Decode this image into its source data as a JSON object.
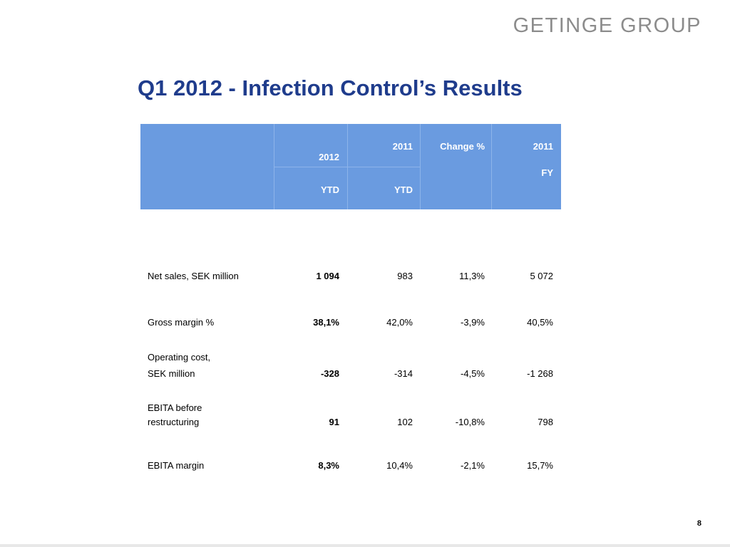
{
  "logo": "GETINGE GROUP",
  "title": "Q1 2012 - Infection Control’s Results",
  "header": {
    "col1_top": "2012",
    "col1_bottom": "YTD",
    "col2_top": "2011",
    "col2_bottom": "YTD",
    "col3": "Change %",
    "col4_top": "2011",
    "col4_bottom": "FY"
  },
  "rows": [
    {
      "label_line1": "Net sales, SEK million",
      "label_line2": "",
      "v2012": "1 094",
      "v2011": "983",
      "change": "11,3%",
      "fy": "5 072"
    },
    {
      "label_line1": "Gross margin %",
      "label_line2": "",
      "v2012": "38,1%",
      "v2011": "42,0%",
      "change": "-3,9%",
      "fy": "40,5%"
    },
    {
      "label_line1": "Operating cost,",
      "label_line2": "SEK million",
      "v2012": "-328",
      "v2011": "-314",
      "change": "-4,5%",
      "fy": "-1 268"
    },
    {
      "label_line1": "EBITA before",
      "label_line2": "restructuring",
      "v2012": "91",
      "v2011": "102",
      "change": "-10,8%",
      "fy": "798"
    },
    {
      "label_line1": "EBITA margin",
      "label_line2": "",
      "v2012": "8,3%",
      "v2011": "10,4%",
      "change": "-2,1%",
      "fy": "15,7%"
    }
  ],
  "page_number": "8",
  "colors": {
    "title": "#1f3c8c",
    "header_bg": "#6a9be0",
    "logo": "#8c8c8c"
  }
}
